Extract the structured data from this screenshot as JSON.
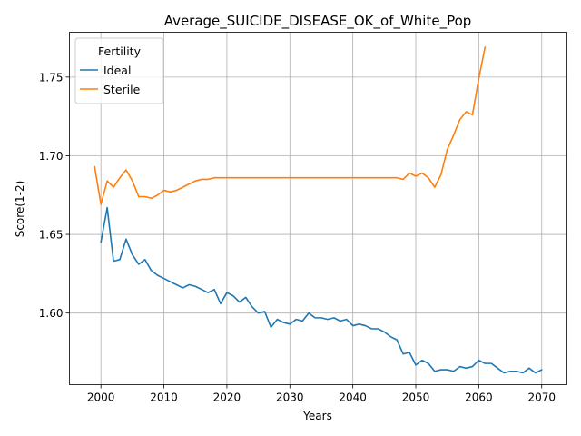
{
  "chart_data": {
    "type": "line",
    "title": "Average_SUICIDE_DISEASE_OK_of_White_Pop",
    "xlabel": "Years",
    "ylabel": "Score(1-2)",
    "xlim": [
      1995,
      2074
    ],
    "ylim": [
      1.5545,
      1.7785
    ],
    "xticks": [
      2000,
      2010,
      2020,
      2030,
      2040,
      2050,
      2060,
      2070
    ],
    "yticks": [
      1.6,
      1.65,
      1.7,
      1.75
    ],
    "grid": true,
    "legend": {
      "title": "Fertility",
      "placement": "upper-left"
    },
    "series": [
      {
        "name": "Ideal",
        "color": "#1f77b4",
        "x": [
          2000,
          2001,
          2002,
          2003,
          2004,
          2005,
          2006,
          2007,
          2008,
          2009,
          2010,
          2011,
          2012,
          2013,
          2014,
          2015,
          2016,
          2017,
          2018,
          2019,
          2020,
          2021,
          2022,
          2023,
          2024,
          2025,
          2026,
          2027,
          2028,
          2029,
          2030,
          2031,
          2032,
          2033,
          2034,
          2035,
          2036,
          2037,
          2038,
          2039,
          2040,
          2041,
          2042,
          2043,
          2044,
          2045,
          2046,
          2047,
          2048,
          2049,
          2050,
          2051,
          2052,
          2053,
          2054,
          2055,
          2056,
          2057,
          2058,
          2059,
          2060,
          2061,
          2062,
          2063,
          2064,
          2065,
          2066,
          2067,
          2068,
          2069,
          2070
        ],
        "values": [
          1.645,
          1.667,
          1.633,
          1.634,
          1.647,
          1.637,
          1.631,
          1.634,
          1.627,
          1.624,
          1.622,
          1.62,
          1.618,
          1.616,
          1.618,
          1.617,
          1.615,
          1.613,
          1.615,
          1.606,
          1.613,
          1.611,
          1.607,
          1.61,
          1.604,
          1.6,
          1.601,
          1.591,
          1.596,
          1.594,
          1.593,
          1.596,
          1.595,
          1.6,
          1.597,
          1.597,
          1.596,
          1.597,
          1.595,
          1.596,
          1.592,
          1.593,
          1.592,
          1.59,
          1.59,
          1.588,
          1.585,
          1.583,
          1.574,
          1.575,
          1.567,
          1.57,
          1.568,
          1.563,
          1.564,
          1.564,
          1.563,
          1.566,
          1.565,
          1.566,
          1.57,
          1.568,
          1.568,
          1.565,
          1.562,
          1.563,
          1.563,
          1.562,
          1.565,
          1.562,
          1.564
        ]
      },
      {
        "name": "Sterile",
        "color": "#ff7f0e",
        "x": [
          1999,
          2000,
          2001,
          2002,
          2003,
          2004,
          2005,
          2006,
          2007,
          2008,
          2009,
          2010,
          2011,
          2012,
          2013,
          2014,
          2015,
          2016,
          2017,
          2018,
          2019,
          2020,
          2021,
          2022,
          2023,
          2024,
          2025,
          2026,
          2027,
          2028,
          2029,
          2030,
          2031,
          2032,
          2033,
          2034,
          2035,
          2036,
          2037,
          2038,
          2039,
          2040,
          2041,
          2042,
          2043,
          2044,
          2045,
          2046,
          2047,
          2048,
          2049,
          2050,
          2051,
          2052,
          2053,
          2054,
          2055,
          2056,
          2057,
          2058,
          2059,
          2060,
          2061
        ],
        "values": [
          1.693,
          1.669,
          1.684,
          1.68,
          1.686,
          1.691,
          1.684,
          1.674,
          1.674,
          1.673,
          1.675,
          1.678,
          1.677,
          1.678,
          1.68,
          1.682,
          1.684,
          1.685,
          1.685,
          1.686,
          1.686,
          1.686,
          1.686,
          1.686,
          1.686,
          1.686,
          1.686,
          1.686,
          1.686,
          1.686,
          1.686,
          1.686,
          1.686,
          1.686,
          1.686,
          1.686,
          1.686,
          1.686,
          1.686,
          1.686,
          1.686,
          1.686,
          1.686,
          1.686,
          1.686,
          1.686,
          1.686,
          1.686,
          1.686,
          1.685,
          1.689,
          1.687,
          1.689,
          1.686,
          1.68,
          1.688,
          1.704,
          1.713,
          1.723,
          1.728,
          1.726,
          1.749,
          1.769
        ]
      }
    ]
  }
}
